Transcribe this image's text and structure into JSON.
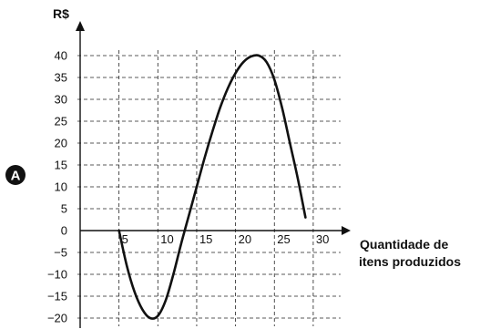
{
  "chart_data": {
    "type": "line",
    "panel_label": "A",
    "ylabel": "R$",
    "xlabel": [
      "Quantidade de",
      "itens produzidos"
    ],
    "x_ticks": [
      "5",
      "10",
      "15",
      "20",
      "25",
      "30"
    ],
    "y_ticks": [
      "40",
      "35",
      "30",
      "25",
      "20",
      "15",
      "10",
      "5",
      "0",
      "−5",
      "−10",
      "−15",
      "−20"
    ],
    "xlim": [
      0,
      30
    ],
    "ylim": [
      -20,
      40
    ],
    "grid": true,
    "series": [
      {
        "x": [
          5,
          6,
          7,
          8,
          9,
          10,
          11,
          12,
          13,
          14,
          15,
          16,
          17,
          18,
          19,
          20,
          21,
          22,
          23,
          24,
          25,
          26,
          27,
          28,
          29
        ],
        "y": [
          0,
          -8,
          -14,
          -18,
          -20,
          -19.5,
          -16,
          -10,
          -3,
          3.5,
          10,
          16.5,
          22.5,
          28,
          32.5,
          36,
          38.5,
          39.8,
          40,
          38.5,
          34.5,
          28,
          20,
          12,
          3
        ]
      }
    ]
  }
}
